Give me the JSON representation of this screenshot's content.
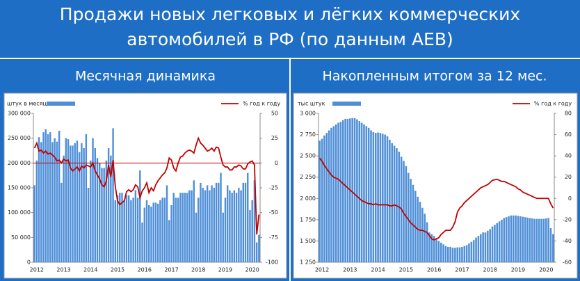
{
  "header": {
    "title_lines": [
      "Продажи новых легковых и лёгких коммерческих",
      "автомобилей в РФ (по данным АЕВ)"
    ]
  },
  "chart_data": [
    {
      "type": "combo",
      "title": "Месячная динамика",
      "zero_line": true,
      "categories": [
        "2012",
        null,
        null,
        null,
        null,
        null,
        null,
        null,
        null,
        null,
        null,
        null,
        "2013",
        null,
        null,
        null,
        null,
        null,
        null,
        null,
        null,
        null,
        null,
        null,
        "2014",
        null,
        null,
        null,
        null,
        null,
        null,
        null,
        null,
        null,
        null,
        null,
        "2015",
        null,
        null,
        null,
        null,
        null,
        null,
        null,
        null,
        null,
        null,
        null,
        "2016",
        null,
        null,
        null,
        null,
        null,
        null,
        null,
        null,
        null,
        null,
        null,
        "2017",
        null,
        null,
        null,
        null,
        null,
        null,
        null,
        null,
        null,
        null,
        null,
        "2018",
        null,
        null,
        null,
        null,
        null,
        null,
        null,
        null,
        null,
        null,
        null,
        "2019",
        null,
        null,
        null,
        null,
        null,
        null,
        null,
        null,
        null,
        null,
        null,
        "2020",
        null,
        null,
        null,
        null
      ],
      "ylim": [
        0,
        300000
      ],
      "yticks": [
        0,
        {
          "value": 50000,
          "label": "50 000"
        },
        {
          "value": 100000,
          "label": "100 000"
        },
        {
          "value": 150000,
          "label": "150 000"
        },
        {
          "value": 200000,
          "label": "200 000"
        },
        {
          "value": 250000,
          "label": "250 000"
        },
        {
          "value": 300000,
          "label": "300 000"
        }
      ],
      "y2lim": [
        -100,
        50
      ],
      "y2ticks": [
        -100,
        -75,
        -50,
        -25,
        0,
        25,
        50
      ],
      "series": [
        {
          "name": "штук в месяц",
          "type": "bar",
          "color": "#4f8fd8",
          "values": [
            155000,
            205000,
            252000,
            242000,
            262000,
            268000,
            258000,
            262000,
            242000,
            250000,
            243000,
            265000,
            160000,
            215000,
            250000,
            248000,
            235000,
            235000,
            240000,
            245000,
            222000,
            240000,
            230000,
            258000,
            150000,
            205000,
            250000,
            230000,
            210000,
            200000,
            190000,
            190000,
            205000,
            230000,
            215000,
            270000,
            125000,
            135000,
            140000,
            140000,
            125000,
            135000,
            135000,
            125000,
            130000,
            145000,
            130000,
            185000,
            80000,
            110000,
            125000,
            115000,
            112000,
            120000,
            120000,
            118000,
            125000,
            130000,
            130000,
            155000,
            85000,
            115000,
            140000,
            130000,
            130000,
            140000,
            140000,
            140000,
            140000,
            145000,
            145000,
            165000,
            100000,
            130000,
            160000,
            150000,
            145000,
            155000,
            145000,
            155000,
            150000,
            160000,
            160000,
            180000,
            100000,
            130000,
            155000,
            145000,
            140000,
            145000,
            140000,
            150000,
            145000,
            160000,
            160000,
            180000,
            105000,
            125000,
            165000,
            40000,
            55000
          ]
        },
        {
          "name": "% год к году",
          "type": "line",
          "axis": "y2",
          "color": "#c00000",
          "values": [
            15,
            20,
            12,
            13,
            10,
            12,
            9,
            10,
            8,
            6,
            2,
            3,
            0,
            4,
            2,
            3,
            -5,
            -8,
            -6,
            -4,
            -8,
            -3,
            -5,
            -2,
            -3,
            -4,
            0,
            -8,
            -12,
            -16,
            -22,
            -24,
            -18,
            -2,
            -14,
            3,
            -24,
            -38,
            -42,
            -40,
            -38,
            -29,
            -27,
            -29,
            -27,
            -22,
            -24,
            -35,
            -28,
            -25,
            -20,
            -30,
            -25,
            -28,
            -22,
            -18,
            -15,
            -12,
            -10,
            -5,
            5,
            3,
            -5,
            -8,
            0,
            6,
            7,
            10,
            12,
            13,
            12,
            10,
            18,
            25,
            20,
            18,
            15,
            12,
            13,
            15,
            12,
            16,
            15,
            6,
            -2,
            -4,
            -4,
            -7,
            -7,
            -4,
            -4,
            -2,
            -3,
            -6,
            -6,
            -1,
            1,
            2,
            -2,
            -72,
            -52
          ]
        }
      ]
    },
    {
      "type": "combo",
      "title": "Накопленным итогом за 12 мес.",
      "zero_line": false,
      "categories": [
        "2012",
        null,
        null,
        null,
        null,
        null,
        null,
        null,
        null,
        null,
        null,
        null,
        "2013",
        null,
        null,
        null,
        null,
        null,
        null,
        null,
        null,
        null,
        null,
        null,
        "2014",
        null,
        null,
        null,
        null,
        null,
        null,
        null,
        null,
        null,
        null,
        null,
        "2015",
        null,
        null,
        null,
        null,
        null,
        null,
        null,
        null,
        null,
        null,
        null,
        "2016",
        null,
        null,
        null,
        null,
        null,
        null,
        null,
        null,
        null,
        null,
        null,
        "2017",
        null,
        null,
        null,
        null,
        null,
        null,
        null,
        null,
        null,
        null,
        null,
        "2018",
        null,
        null,
        null,
        null,
        null,
        null,
        null,
        null,
        null,
        null,
        null,
        "2019",
        null,
        null,
        null,
        null,
        null,
        null,
        null,
        null,
        null,
        null,
        null,
        "2020",
        null,
        null,
        null,
        null
      ],
      "ylim": [
        1250,
        3000
      ],
      "yticks": [
        {
          "value": 1250,
          "label": "1 250"
        },
        {
          "value": 1500,
          "label": "1 500"
        },
        {
          "value": 1750,
          "label": "1 750"
        },
        {
          "value": 2000,
          "label": "2 000"
        },
        {
          "value": 2250,
          "label": "2 250"
        },
        {
          "value": 2500,
          "label": "2 500"
        },
        {
          "value": 2750,
          "label": "2 750"
        },
        {
          "value": 3000,
          "label": "3 000"
        }
      ],
      "y2lim": [
        -60,
        80
      ],
      "y2ticks": [
        -60,
        -40,
        -20,
        0,
        20,
        40,
        60,
        80
      ],
      "series": [
        {
          "name": "тыс штук",
          "type": "bar",
          "color": "#4f8fd8",
          "values": [
            2680,
            2700,
            2740,
            2770,
            2800,
            2830,
            2850,
            2870,
            2890,
            2900,
            2920,
            2935,
            2935,
            2940,
            2945,
            2945,
            2930,
            2910,
            2890,
            2870,
            2850,
            2830,
            2800,
            2780,
            2770,
            2775,
            2770,
            2760,
            2750,
            2730,
            2690,
            2650,
            2620,
            2590,
            2550,
            2490,
            2440,
            2380,
            2300,
            2230,
            2160,
            2090,
            2020,
            1960,
            1890,
            1820,
            1720,
            1600,
            1580,
            1560,
            1520,
            1500,
            1480,
            1460,
            1440,
            1430,
            1430,
            1420,
            1420,
            1425,
            1425,
            1430,
            1440,
            1450,
            1470,
            1490,
            1510,
            1540,
            1560,
            1580,
            1600,
            1600,
            1620,
            1640,
            1670,
            1690,
            1710,
            1730,
            1750,
            1770,
            1780,
            1790,
            1800,
            1800,
            1800,
            1795,
            1790,
            1785,
            1780,
            1775,
            1770,
            1765,
            1760,
            1760,
            1760,
            1760,
            1760,
            1765,
            1770,
            1650,
            1580
          ]
        },
        {
          "name": "% год к году",
          "type": "line",
          "axis": "y2",
          "color": "#c00000",
          "values": [
            38,
            35,
            31,
            28,
            25,
            22,
            20,
            19,
            18,
            16,
            14,
            12,
            10,
            8,
            6,
            4,
            2,
            0,
            -2,
            -3,
            -4,
            -5,
            -5,
            -6,
            -5,
            -6,
            -6,
            -6,
            -6,
            -6,
            -7,
            -7,
            -6,
            -7,
            -8,
            -10,
            -14,
            -17,
            -20,
            -23,
            -25,
            -27,
            -29,
            -30,
            -30,
            -31,
            -32,
            -35,
            -38,
            -39,
            -38,
            -37,
            -34,
            -32,
            -30,
            -30,
            -30,
            -27,
            -22,
            -13,
            -9,
            -7,
            -4,
            -2,
            0,
            2,
            4,
            6,
            8,
            10,
            11,
            12,
            13,
            15,
            17,
            17.5,
            18,
            17,
            16,
            16,
            15,
            14,
            13,
            12,
            11,
            9,
            8,
            6,
            5,
            4,
            3,
            2,
            1,
            0,
            0,
            0,
            0,
            0,
            0,
            -5,
            -9
          ]
        }
      ]
    }
  ]
}
